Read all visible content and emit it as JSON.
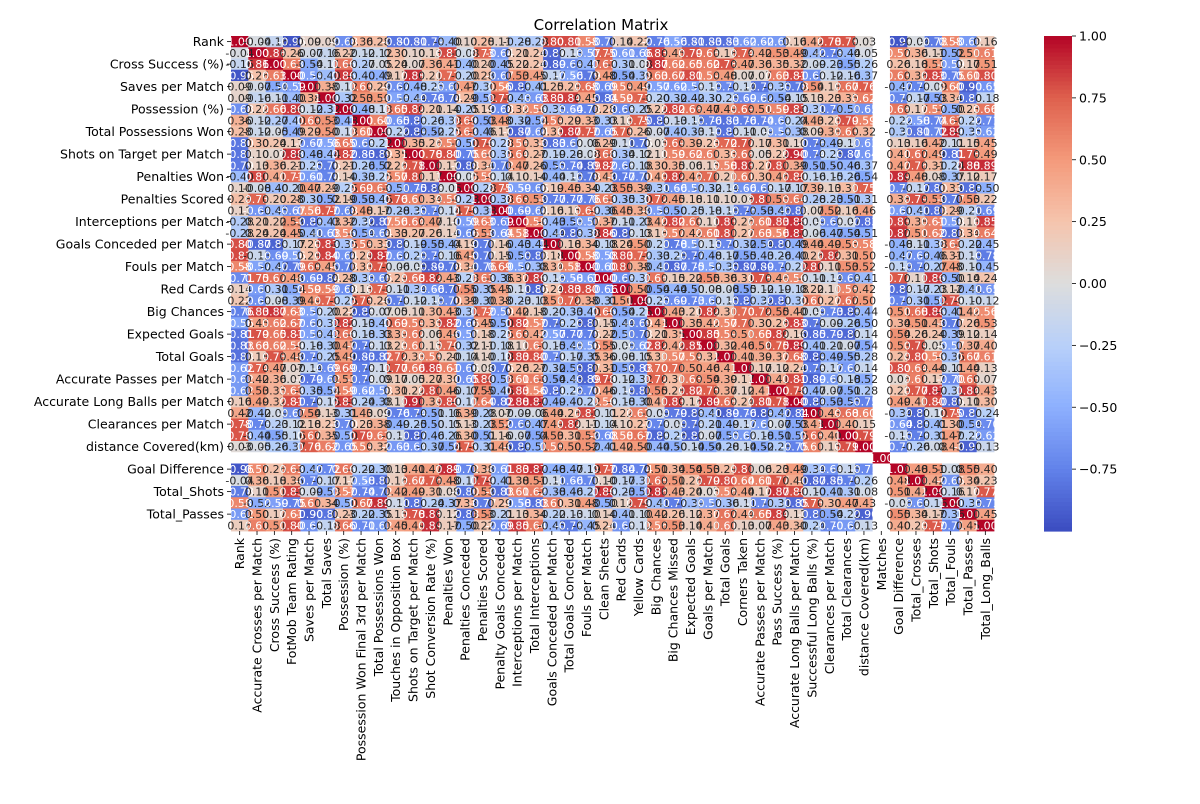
{
  "chart_data": {
    "type": "heatmap",
    "title": "Correlation Matrix",
    "variables": [
      "Rank",
      "Accurate Crosses per Match",
      "Cross Success (%)",
      "FotMob Team Rating",
      "Saves per Match",
      "Total Saves",
      "Possession (%)",
      "Possession Won Final 3rd per Match",
      "Total Possessions Won",
      "Touches in Opposition Box",
      "Shots on Target per Match",
      "Shot Conversion Rate (%)",
      "Penalties Won",
      "Penalties Conceded",
      "Penalties Scored",
      "Penalty Goals Conceded",
      "Interceptions per Match",
      "Total Interceptions",
      "Goals Conceded per Match",
      "Total Goals Conceded",
      "Fouls per Match",
      "Clean Sheets",
      "Red Cards",
      "Yellow Cards",
      "Big Chances",
      "Big Chances Missed",
      "Expected Goals",
      "Goals per Match",
      "Total Goals",
      "Corners Taken",
      "Accurate Passes per Match",
      "Pass Success (%)",
      "Accurate Long Balls per Match",
      "Successful Long Balls (%)",
      "Clearances per Match",
      "Total Clearances",
      "distance Covered(km)",
      "Matches",
      "Goal Difference",
      "Total_Crosses",
      "Total_Shots",
      "Total_Fouls",
      "Total_Passes",
      "Total_Long_Balls"
    ],
    "y_tick_labels": [
      "Rank",
      "Cross Success (%)",
      "Saves per Match",
      "Possession (%)",
      "Total Possessions Won",
      "Shots on Target per Match",
      "Penalties Won",
      "Penalties Scored",
      "Interceptions per Match",
      "Goals Conceded per Match",
      "Fouls per Match",
      "Red Cards",
      "Big Chances",
      "Expected Goals",
      "Total Goals",
      "Accurate Passes per Match",
      "Accurate Long Balls per Match",
      "Clearances per Match",
      "distance Covered(km)",
      "Goal Difference",
      "Total_Shots",
      "Total_Passes"
    ],
    "x_tick_labels": [
      "Rank",
      "Accurate Crosses per Match",
      "Cross Success (%)",
      "FotMob Team Rating",
      "Saves per Match",
      "Total Saves",
      "Possession (%)",
      "Possession Won Final 3rd per Match",
      "Total Possessions Won",
      "Touches in Opposition Box",
      "Shots on Target per Match",
      "Shot Conversion Rate (%)",
      "Penalties Won",
      "Penalties Conceded",
      "Penalties Scored",
      "Penalty Goals Conceded",
      "Interceptions per Match",
      "Total Interceptions",
      "Goals Conceded per Match",
      "Total Goals Conceded",
      "Fouls per Match",
      "Clean Sheets",
      "Red Cards",
      "Yellow Cards",
      "Big Chances",
      "Big Chances Missed",
      "Expected Goals",
      "Goals per Match",
      "Total Goals",
      "Corners Taken",
      "Accurate Passes per Match",
      "Pass Success (%)",
      "Accurate Long Balls per Match",
      "Successful Long Balls (%)",
      "Clearances per Match",
      "Total Clearances",
      "distance Covered(km)",
      "Matches",
      "Goal Difference",
      "Total_Crosses",
      "Total_Shots",
      "Total_Fouls",
      "Total_Passes",
      "Total_Long_Balls"
    ],
    "first_row_values": [
      1.0,
      -0.04,
      -0.16,
      -0.96,
      0.09,
      0.09,
      -0.68,
      0.36,
      0.28,
      -0.8,
      -0.81,
      -0.79,
      -0.4,
      0.1,
      0.28,
      0.11,
      -0.28,
      -0.28,
      0.8,
      0.81,
      0.58,
      -0.71,
      0.14,
      0.22,
      -0.76,
      -0.56,
      -0.81,
      -0.83,
      -0.83,
      -0.62,
      -0.62,
      -0.62,
      0.16,
      0.42,
      0.78,
      0.78,
      0.03,
      null,
      -0.96,
      -0.04,
      -0.78,
      0.58,
      -0.62,
      0.16
    ],
    "missing_variable": "Matches",
    "colorbar": {
      "min": -1.0,
      "max": 1.0,
      "ticks": [
        1.0,
        0.75,
        0.5,
        0.25,
        0.0,
        -0.25,
        -0.5,
        -0.75
      ]
    },
    "annotations": true,
    "annotation_precision": 2,
    "colormap": "coolwarm",
    "colors": {
      "low": "#3b4cc0",
      "mid": "#dddddd",
      "high": "#b40426"
    }
  }
}
